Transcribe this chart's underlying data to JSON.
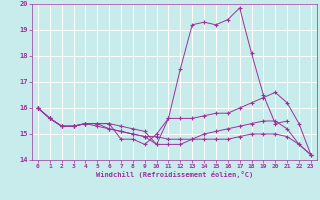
{
  "xlabel": "Windchill (Refroidissement éolien,°C)",
  "background_color": "#c8ecec",
  "grid_color": "#ffffff",
  "line_color": "#993399",
  "xlim": [
    -0.5,
    23.5
  ],
  "ylim": [
    14,
    20
  ],
  "yticks": [
    14,
    15,
    16,
    17,
    18,
    19,
    20
  ],
  "xticks": [
    0,
    1,
    2,
    3,
    4,
    5,
    6,
    7,
    8,
    9,
    10,
    11,
    12,
    13,
    14,
    15,
    16,
    17,
    18,
    19,
    20,
    21,
    22,
    23
  ],
  "series": [
    [
      16.0,
      15.6,
      15.3,
      15.3,
      15.4,
      15.4,
      15.4,
      14.8,
      14.8,
      14.6,
      15.0,
      15.6,
      17.5,
      19.2,
      19.3,
      19.2,
      19.4,
      19.85,
      18.1,
      16.5,
      15.4,
      15.5,
      null,
      null
    ],
    [
      16.0,
      15.6,
      15.3,
      15.3,
      15.4,
      15.4,
      15.4,
      15.3,
      15.2,
      15.1,
      14.6,
      15.6,
      15.6,
      15.6,
      15.7,
      15.8,
      15.8,
      16.0,
      16.2,
      16.4,
      16.6,
      16.2,
      15.4,
      14.2
    ],
    [
      16.0,
      15.6,
      15.3,
      15.3,
      15.4,
      15.4,
      15.2,
      15.1,
      15.0,
      14.9,
      14.6,
      14.6,
      14.6,
      14.8,
      15.0,
      15.1,
      15.2,
      15.3,
      15.4,
      15.5,
      15.5,
      15.2,
      14.6,
      14.2
    ],
    [
      16.0,
      15.6,
      15.3,
      15.3,
      15.4,
      15.3,
      15.2,
      15.1,
      15.0,
      14.9,
      14.9,
      14.8,
      14.8,
      14.8,
      14.8,
      14.8,
      14.8,
      14.9,
      15.0,
      15.0,
      15.0,
      14.9,
      14.6,
      14.2
    ]
  ]
}
